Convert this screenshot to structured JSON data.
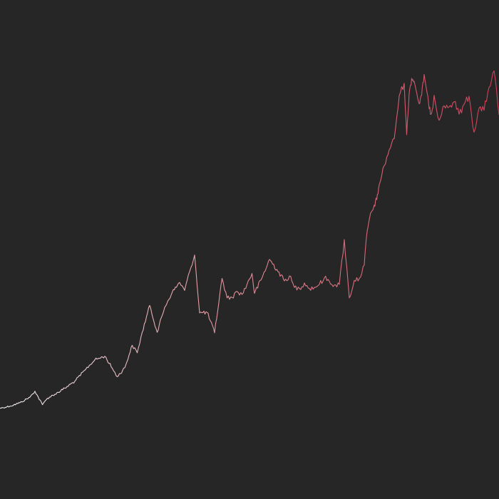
{
  "chart_data": {
    "type": "line",
    "title": "",
    "xlabel": "",
    "ylabel": "",
    "grid": false,
    "legend": "none",
    "colors": {
      "background": "#262627",
      "gradient_start": "#f1eeee",
      "gradient_mid": "#e1929b",
      "gradient_end": "#cf3d55"
    },
    "xlim": [
      0,
      100
    ],
    "ylim": [
      0,
      100
    ],
    "x": [
      0,
      2,
      4,
      6,
      7,
      8.5,
      9.5,
      11,
      13,
      15,
      17,
      19,
      21,
      22.5,
      23.5,
      25,
      26.5,
      27.5,
      28.5,
      30,
      31.5,
      33,
      34.5,
      36,
      37,
      38,
      39,
      40,
      41.5,
      43,
      44.5,
      45.5,
      46.5,
      47.5,
      48.5,
      49.5,
      50.5,
      51,
      52.5,
      54,
      55.5,
      57,
      58,
      59,
      60,
      61,
      62,
      63,
      64,
      65,
      66,
      67,
      68,
      69,
      70,
      71,
      72,
      73,
      73.5,
      74,
      75,
      75.5,
      76,
      77,
      78,
      79,
      80,
      81,
      81.5,
      82,
      82.5,
      83,
      84,
      84.5,
      85,
      86,
      86.5,
      87,
      88,
      89,
      90,
      91,
      92,
      93,
      94,
      95,
      96,
      97,
      98,
      99,
      100
    ],
    "y": [
      18.2,
      18.6,
      19.3,
      20.4,
      21.6,
      18.9,
      20.2,
      21.0,
      22.2,
      23.6,
      25.8,
      27.9,
      28.6,
      26.2,
      24.5,
      26.3,
      30.8,
      29.3,
      33.4,
      38.8,
      33.4,
      38.4,
      41.4,
      43.4,
      41.8,
      45.6,
      48.9,
      37.3,
      37.4,
      33.3,
      44.2,
      40.3,
      40.4,
      41.6,
      41.0,
      43.0,
      45.2,
      41.2,
      44.3,
      48.0,
      46.0,
      43.7,
      44.7,
      42.4,
      42.2,
      43.3,
      42.2,
      42.4,
      43.0,
      44.3,
      43.6,
      42.9,
      43.0,
      52.0,
      40.3,
      43.8,
      44.2,
      46.9,
      53.0,
      56.0,
      58.9,
      60.0,
      63.0,
      66.8,
      70.0,
      72.2,
      80.8,
      83.3,
      73.0,
      81.4,
      84.3,
      83.7,
      79.2,
      80.9,
      85.1,
      78.2,
      77.3,
      80.9,
      75.9,
      78.8,
      78.6,
      79.6,
      77.1,
      79.1,
      80.7,
      73.5,
      78.3,
      77.9,
      82.5,
      85.8,
      77.0
    ]
  }
}
